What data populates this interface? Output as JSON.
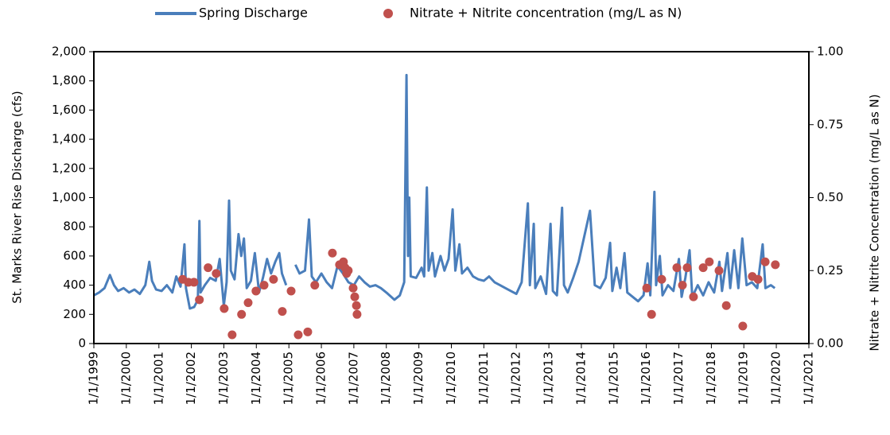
{
  "chart_data": {
    "type": "line",
    "y_label": "St. Marks River Rise Discharge (cfs)",
    "y2_label": "Nitrate + Nitrite Concentration (mg/L as N)",
    "xlim": [
      "1/1/1999",
      "1/1/2021"
    ],
    "xticks": [
      "1/1/1999",
      "1/1/2000",
      "1/1/2001",
      "1/1/2002",
      "1/1/2003",
      "1/1/2004",
      "1/1/2005",
      "1/1/2006",
      "1/1/2007",
      "1/1/2008",
      "1/1/2009",
      "1/1/2010",
      "1/1/2011",
      "1/1/2012",
      "1/1/2013",
      "1/1/2014",
      "1/1/2015",
      "1/1/2016",
      "1/1/2017",
      "1/1/2018",
      "1/1/2019",
      "1/1/2020",
      "1/1/2021"
    ],
    "ylim": [
      0,
      2000
    ],
    "yticks": [
      0,
      200,
      400,
      600,
      800,
      {
        "value": 1000,
        "label": "1,000"
      },
      {
        "value": 1200,
        "label": "1,200"
      },
      {
        "value": 1400,
        "label": "1,400"
      },
      {
        "value": 1600,
        "label": "1,600"
      },
      {
        "value": 1800,
        "label": "1,800"
      },
      {
        "value": 2000,
        "label": "2,000"
      }
    ],
    "y2lim": [
      0,
      1
    ],
    "y2ticks": [
      {
        "value": 0,
        "label": "0.00"
      },
      {
        "value": 0.25,
        "label": "0.25"
      },
      {
        "value": 0.5,
        "label": "0.50"
      },
      {
        "value": 0.75,
        "label": "0.75"
      },
      {
        "value": 1,
        "label": "1.00"
      }
    ],
    "grid": false,
    "legend": "top",
    "series": [
      {
        "name": "Spring Discharge",
        "color": "#4a7ebb",
        "type": "line",
        "x": [
          "1/1/1999",
          "3/1/1999",
          "5/1/1999",
          "7/1/1999",
          "8/15/1999",
          "10/1/1999",
          "12/1/1999",
          "2/1/2000",
          "4/1/2000",
          "6/1/2000",
          "8/1/2000",
          "9/15/2000",
          "10/15/2000",
          "12/1/2000",
          "2/1/2001",
          "4/1/2001",
          "6/1/2001",
          "7/15/2001",
          "9/1/2001",
          "10/15/2001",
          "11/1/2001",
          "12/15/2001",
          "2/1/2002",
          "3/15/2002",
          "4/1/2002",
          "4/15/2002",
          "6/1/2002",
          "8/1/2002",
          "10/1/2002",
          "11/15/2002",
          "1/1/2003",
          "2/1/2003",
          "3/1/2003",
          "3/20/2003",
          "5/1/2003",
          "6/15/2003",
          "7/15/2003",
          "8/15/2003",
          "9/15/2003",
          "11/1/2003",
          "12/15/2003",
          "2/1/2004",
          "3/15/2004",
          "5/1/2004",
          "6/15/2004",
          "8/1/2004",
          "9/15/2004",
          "10/15/2004",
          "12/1/2004",
          "1/15/2005",
          "3/15/2005",
          "5/1/2005",
          "7/1/2005",
          "8/15/2005",
          "9/15/2005",
          "11/1/2005",
          "1/1/2006",
          "3/1/2006",
          "5/1/2006",
          "7/1/2006",
          "9/1/2006",
          "11/1/2006",
          "1/1/2007",
          "3/1/2007",
          "5/1/2007",
          "7/1/2007",
          "9/1/2007",
          "11/1/2007",
          "1/1/2008",
          "4/1/2008",
          "6/1/2008",
          "7/20/2008",
          "8/15/2008",
          "9/1/2008",
          "9/15/2008",
          "10/1/2008",
          "12/1/2008",
          "2/1/2009",
          "3/1/2009",
          "4/1/2009",
          "4/20/2009",
          "6/1/2009",
          "7/1/2009",
          "9/1/2009",
          "10/15/2009",
          "12/1/2009",
          "1/15/2010",
          "2/15/2010",
          "4/1/2010",
          "5/1/2010",
          "7/1/2010",
          "9/1/2010",
          "11/1/2010",
          "1/1/2011",
          "3/1/2011",
          "5/1/2011",
          "7/1/2011",
          "9/1/2011",
          "11/1/2011",
          "1/1/2012",
          "3/1/2012",
          "5/10/2012",
          "6/1/2012",
          "7/15/2012",
          "8/1/2012",
          "10/1/2012",
          "12/1/2012",
          "1/20/2013",
          "2/15/2013",
          "4/1/2013",
          "5/29/2013",
          "6/20/2013",
          "8/1/2013",
          "10/1/2013",
          "12/1/2013",
          "4/8/2014",
          "6/1/2014",
          "8/1/2014",
          "10/1/2014",
          "11/20/2014",
          "12/15/2014",
          "2/1/2015",
          "3/15/2015",
          "5/1/2015",
          "6/1/2015",
          "8/1/2015",
          "10/1/2015",
          "12/1/2015",
          "1/15/2016",
          "2/15/2016",
          "4/1/2016",
          "4/20/2016",
          "6/1/2016",
          "7/1/2016",
          "9/1/2016",
          "11/1/2016",
          "1/1/2017",
          "2/1/2017",
          "3/15/2017",
          "5/1/2017",
          "6/1/2017",
          "8/1/2017",
          "10/1/2017",
          "12/1/2017",
          "2/1/2018",
          "4/1/2018",
          "5/1/2018",
          "7/1/2018",
          "8/1/2018",
          "9/15/2018",
          "11/1/2018",
          "12/15/2018",
          "2/1/2019",
          "4/1/2019",
          "6/1/2019",
          "8/1/2019",
          "9/1/2019",
          "11/1/2019",
          "12/15/2019"
        ],
        "values": [
          330,
          350,
          380,
          470,
          400,
          360,
          380,
          350,
          370,
          340,
          400,
          560,
          430,
          370,
          360,
          400,
          350,
          460,
          390,
          680,
          380,
          240,
          250,
          300,
          840,
          350,
          400,
          450,
          430,
          580,
          260,
          420,
          980,
          500,
          440,
          750,
          600,
          720,
          380,
          430,
          620,
          350,
          450,
          580,
          480,
          560,
          620,
          480,
          400,
          null,
          540,
          480,
          500,
          850,
          460,
          420,
          480,
          420,
          380,
          530,
          480,
          420,
          400,
          460,
          420,
          390,
          400,
          380,
          350,
          300,
          330,
          420,
          1840,
          600,
          1000,
          460,
          450,
          520,
          460,
          1070,
          500,
          620,
          460,
          600,
          500,
          580,
          920,
          500,
          680,
          480,
          520,
          460,
          440,
          430,
          460,
          420,
          400,
          380,
          360,
          340,
          420,
          960,
          400,
          820,
          380,
          460,
          340,
          820,
          360,
          330,
          930,
          400,
          350,
          450,
          560,
          910,
          400,
          380,
          450,
          690,
          360,
          520,
          380,
          620,
          350,
          320,
          290,
          330,
          550,
          330,
          1040,
          400,
          600,
          330,
          400,
          360,
          580,
          320,
          450,
          640,
          320,
          400,
          330,
          420,
          350,
          560,
          360,
          620,
          380,
          640,
          380,
          720,
          400,
          420,
          380,
          680,
          380,
          400,
          380
        ]
      },
      {
        "name": "Nitrate + Nitrite concentration (mg/L as N)",
        "color": "#c0504d",
        "type": "scatter",
        "axis": "y2",
        "x": [
          "9/25/2001",
          "11/28/2001",
          "1/30/2002",
          "4/1/2002",
          "7/8/2002",
          "10/7/2002",
          "1/5/2003",
          "4/4/2003",
          "7/19/2003",
          "10/1/2003",
          "12/28/2003",
          "3/28/2004",
          "7/12/2004",
          "10/19/2004",
          "1/26/2005",
          "4/16/2005",
          "8/1/2005",
          "10/19/2005",
          "5/5/2006",
          "7/24/2006",
          "9/6/2006",
          "9/24/2006",
          "10/12/2006",
          "10/30/2006",
          "12/24/2006",
          "1/11/2007",
          "1/30/2007",
          "2/6/2007",
          "1/5/2016",
          "2/29/2016",
          "6/22/2016",
          "12/9/2016",
          "2/10/2017",
          "4/4/2017",
          "6/14/2017",
          "10/1/2017",
          "12/9/2017",
          "3/28/2018",
          "6/18/2018",
          "12/20/2018",
          "4/6/2019",
          "6/10/2019",
          "8/29/2019",
          "12/21/2019"
        ],
        "values": [
          0.22,
          0.21,
          0.21,
          0.15,
          0.26,
          0.24,
          0.12,
          0.03,
          0.1,
          0.14,
          0.18,
          0.2,
          0.22,
          0.11,
          0.18,
          0.03,
          0.04,
          0.2,
          0.31,
          0.27,
          0.28,
          0.26,
          0.24,
          0.25,
          0.19,
          0.16,
          0.13,
          0.1,
          0.19,
          0.1,
          0.22,
          0.26,
          0.2,
          0.26,
          0.16,
          0.26,
          0.28,
          0.25,
          0.13,
          0.06,
          0.23,
          0.22,
          0.28,
          0.27
        ]
      }
    ]
  }
}
